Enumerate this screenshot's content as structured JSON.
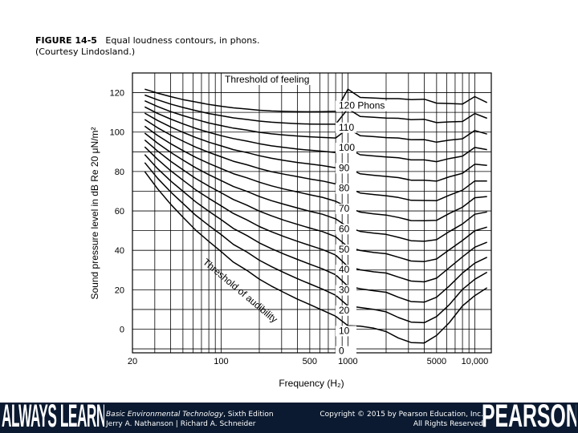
{
  "caption": {
    "figure_label": "FIGURE 14-5",
    "title": "Equal loudness contours, in phons.",
    "credit": "(Courtesy Lindosland.)"
  },
  "chart_data": {
    "type": "line",
    "title": "Equal loudness contours, in phons",
    "xlabel": "Frequency (H₂)",
    "ylabel": "Sound pressure level in dB Re 20 μN/m²",
    "xscale": "log",
    "xlim": [
      20,
      13500
    ],
    "ylim": [
      -12,
      130
    ],
    "x_ticks": [
      {
        "value": 20,
        "label": "20"
      },
      {
        "value": 100,
        "label": "100"
      },
      {
        "value": 500,
        "label": "500"
      },
      {
        "value": 1000,
        "label": "1000"
      },
      {
        "value": 5000,
        "label": "5000"
      },
      {
        "value": 10000,
        "label": "10,000"
      }
    ],
    "y_ticks": [
      {
        "value": 0,
        "label": "0"
      },
      {
        "value": 20,
        "label": "20"
      },
      {
        "value": 40,
        "label": "40"
      },
      {
        "value": 60,
        "label": "60"
      },
      {
        "value": 80,
        "label": "80"
      },
      {
        "value": 100,
        "label": "100"
      },
      {
        "value": 120,
        "label": "120"
      }
    ],
    "grid": true,
    "x": [
      25,
      31.5,
      40,
      50,
      63,
      80,
      100,
      125,
      160,
      200,
      250,
      315,
      400,
      500,
      630,
      800,
      1000,
      1250,
      1600,
      2000,
      2500,
      3150,
      4000,
      5000,
      6300,
      8000,
      10000,
      12500
    ],
    "series": [
      {
        "name": "0",
        "label": "0",
        "values": [
          80.0,
          71.3,
          63.4,
          56.8,
          50.3,
          44.5,
          39.4,
          34.0,
          29.8,
          25.4,
          21.8,
          18.5,
          15.2,
          12.5,
          9.6,
          6.6,
          1.8,
          1.5,
          0.5,
          -1.2,
          -4.5,
          -6.8,
          -7.0,
          -3.2,
          3.3,
          11.8,
          17.0,
          21.0
        ]
      },
      {
        "name": "10",
        "label": "10",
        "values": [
          84.5,
          76.6,
          69.6,
          63.8,
          57.8,
          52.6,
          48.0,
          43.0,
          39.1,
          35.0,
          31.7,
          28.6,
          25.6,
          23.0,
          20.3,
          17.2,
          11.8,
          11.0,
          10.0,
          8.8,
          5.9,
          3.6,
          3.3,
          6.4,
          12.4,
          20.2,
          25.3,
          28.9
        ]
      },
      {
        "name": "20",
        "label": "20",
        "values": [
          88.6,
          81.5,
          75.2,
          70.0,
          64.6,
          59.8,
          55.6,
          51.1,
          47.5,
          43.8,
          40.8,
          38.0,
          35.4,
          33.0,
          30.6,
          27.6,
          21.8,
          20.5,
          19.5,
          18.7,
          16.2,
          14.0,
          13.7,
          16.2,
          21.9,
          28.5,
          33.5,
          36.5
        ]
      },
      {
        "name": "30",
        "label": "30",
        "values": [
          92.5,
          86.2,
          80.4,
          75.6,
          70.7,
          66.4,
          62.6,
          58.7,
          55.4,
          52.1,
          49.4,
          46.9,
          44.6,
          42.5,
          40.4,
          37.6,
          31.8,
          30.1,
          29.1,
          28.5,
          26.4,
          24.4,
          24.0,
          25.9,
          31.2,
          36.7,
          41.6,
          44.1
        ]
      },
      {
        "name": "40",
        "label": "40",
        "values": [
          96.0,
          90.4,
          85.2,
          80.9,
          76.5,
          72.6,
          69.2,
          65.8,
          62.9,
          59.9,
          57.5,
          55.2,
          53.2,
          51.3,
          49.5,
          46.9,
          41.8,
          39.9,
          38.9,
          38.3,
          36.5,
          34.6,
          34.3,
          35.6,
          40.3,
          45.0,
          49.9,
          51.8
        ]
      },
      {
        "name": "50",
        "label": "50",
        "values": [
          99.5,
          94.4,
          89.7,
          85.8,
          81.9,
          78.4,
          75.4,
          72.4,
          69.9,
          67.3,
          65.2,
          63.3,
          61.5,
          59.8,
          58.3,
          56.0,
          51.8,
          49.6,
          48.7,
          48.1,
          46.6,
          44.9,
          44.6,
          45.4,
          49.5,
          53.4,
          58.3,
          59.5
        ]
      },
      {
        "name": "60",
        "label": "60",
        "values": [
          103.0,
          98.3,
          94.1,
          90.6,
          87.2,
          84.1,
          81.5,
          78.9,
          76.8,
          74.6,
          72.7,
          71.1,
          69.6,
          68.2,
          66.9,
          64.9,
          61.8,
          59.4,
          58.5,
          57.9,
          56.7,
          55.1,
          55.0,
          55.2,
          58.7,
          61.9,
          66.7,
          67.3
        ]
      },
      {
        "name": "70",
        "label": "70",
        "values": [
          106.4,
          102.2,
          98.5,
          95.4,
          92.4,
          89.7,
          87.5,
          85.2,
          83.4,
          81.5,
          79.9,
          78.6,
          77.4,
          76.2,
          75.2,
          73.7,
          71.8,
          69.1,
          68.3,
          67.7,
          66.8,
          65.4,
          65.3,
          65.2,
          68.0,
          70.5,
          75.2,
          75.2
        ]
      },
      {
        "name": "80",
        "label": "80",
        "values": [
          109.6,
          105.9,
          102.6,
          99.9,
          97.3,
          94.9,
          93.0,
          91.1,
          89.6,
          88.0,
          86.7,
          85.6,
          84.6,
          83.8,
          83.0,
          81.9,
          81.8,
          78.8,
          78.1,
          77.5,
          76.9,
          75.6,
          75.6,
          75.1,
          77.3,
          79.1,
          83.7,
          83.1
        ]
      },
      {
        "name": "90",
        "label": "90",
        "values": [
          112.8,
          109.5,
          106.6,
          104.2,
          101.9,
          99.9,
          98.2,
          96.7,
          95.4,
          94.1,
          93.0,
          92.2,
          91.4,
          90.8,
          90.3,
          89.6,
          91.8,
          88.5,
          87.9,
          87.4,
          87.0,
          85.9,
          85.9,
          85.0,
          86.6,
          87.8,
          92.2,
          91.1
        ]
      },
      {
        "name": "100",
        "label": "100",
        "values": [
          115.9,
          113.0,
          110.4,
          108.4,
          106.5,
          104.6,
          103.3,
          102.0,
          101.0,
          99.9,
          99.1,
          98.5,
          98.0,
          97.6,
          97.3,
          97.0,
          101.8,
          98.2,
          97.7,
          97.2,
          97.0,
          96.1,
          96.2,
          94.9,
          95.9,
          96.6,
          100.8,
          99.0
        ]
      },
      {
        "name": "110",
        "label": "110",
        "values": [
          118.8,
          116.4,
          114.2,
          112.5,
          110.9,
          109.4,
          108.3,
          107.2,
          106.4,
          105.6,
          105.0,
          104.6,
          104.3,
          104.1,
          104.0,
          104.0,
          111.8,
          107.9,
          107.5,
          107.1,
          107.0,
          106.3,
          106.5,
          104.8,
          105.2,
          105.4,
          109.4,
          107.0
        ]
      },
      {
        "name": "120",
        "label": "120 Phons",
        "values": [
          121.8,
          119.8,
          118.0,
          116.5,
          115.3,
          114.0,
          113.1,
          112.3,
          111.7,
          111.1,
          110.7,
          110.5,
          110.4,
          110.3,
          110.4,
          110.6,
          121.8,
          117.6,
          117.3,
          117.0,
          117.0,
          116.5,
          116.7,
          114.7,
          114.5,
          114.2,
          118.0,
          115.0
        ]
      }
    ],
    "annotations": [
      {
        "text": "Threshold of feeling"
      },
      {
        "text": "Threshold of audibility"
      }
    ]
  },
  "footer": {
    "brand_left": "ALWAYS LEARNING",
    "book_title": "Basic Environmental Technology",
    "book_edition": ", Sixth Edition",
    "authors": "Jerry A. Nathanson | Richard A. Schneider",
    "copyright_line1": "Copyright © 2015 by Pearson Education, Inc.",
    "copyright_line2": "All Rights Reserved",
    "brand_right": "PEARSON"
  }
}
